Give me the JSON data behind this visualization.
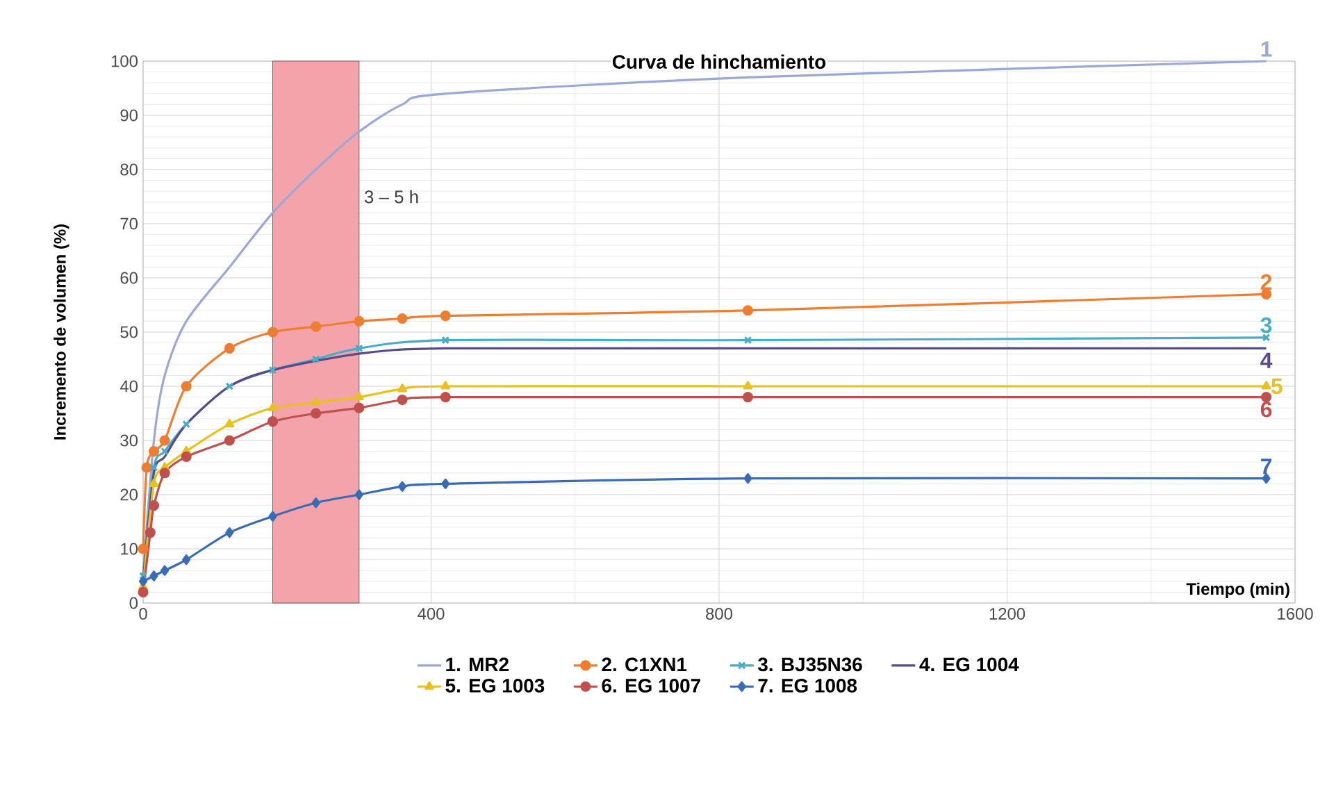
{
  "chart_data": {
    "type": "line",
    "title": "Curva de hinchamiento",
    "xlabel": "Tiempo (min)",
    "ylabel": "Incremento de volumen (%)",
    "xlim": [
      0,
      1600
    ],
    "xticks": [
      0,
      400,
      800,
      1200,
      1600
    ],
    "ylim": [
      0,
      100
    ],
    "yticks": [
      0,
      10,
      20,
      30,
      40,
      50,
      60,
      70,
      80,
      90,
      100
    ],
    "grid": true,
    "legend": "bottom",
    "marker": "circle",
    "bands": [
      {
        "axis": "x",
        "from": 180,
        "to": 300,
        "label": "3 – 5 h",
        "color": "#f4a3aa"
      }
    ],
    "annotations": [
      "1",
      "2",
      "3",
      "4",
      "5",
      "6",
      "7"
    ],
    "series": [
      {
        "name": "1. MR2",
        "color": "#9aa8d8",
        "marker": "none",
        "x": [
          0,
          15,
          30,
          60,
          120,
          180,
          240,
          300,
          360,
          420,
          840,
          1560
        ],
        "values": [
          5,
          30,
          42,
          52,
          62,
          72,
          80,
          87,
          92,
          94,
          97,
          100
        ]
      },
      {
        "name": "2. C1XN1",
        "color": "#ed7d31",
        "x": [
          0,
          5,
          15,
          30,
          60,
          120,
          180,
          240,
          300,
          360,
          420,
          840,
          1560
        ],
        "values": [
          10,
          25,
          28,
          30,
          40,
          47,
          50,
          51,
          52,
          52.5,
          53,
          54,
          57
        ]
      },
      {
        "name": "3. BJ35N36",
        "color": "#4bacc6",
        "marker": "cross",
        "x": [
          0,
          15,
          30,
          60,
          120,
          180,
          240,
          300,
          420,
          840,
          1560
        ],
        "values": [
          5,
          25,
          28,
          33,
          40,
          43,
          45,
          47,
          48.5,
          48.5,
          49
        ]
      },
      {
        "name": "4. EG 1004",
        "color": "#5b4a8a",
        "marker": "none",
        "x": [
          0,
          15,
          30,
          60,
          120,
          180,
          300,
          420,
          840,
          1560
        ],
        "values": [
          4,
          24,
          27,
          33,
          40,
          43,
          46,
          47,
          47,
          47
        ]
      },
      {
        "name": "5. EG 1003",
        "color": "#e8c020",
        "marker": "triangle",
        "x": [
          0,
          15,
          30,
          60,
          120,
          180,
          240,
          300,
          360,
          420,
          840,
          1560
        ],
        "values": [
          3,
          22,
          25,
          28,
          33,
          36,
          37,
          38,
          39.5,
          40,
          40,
          40
        ]
      },
      {
        "name": "6. EG 1007",
        "color": "#c0504d",
        "x": [
          0,
          10,
          15,
          30,
          60,
          120,
          180,
          240,
          300,
          360,
          420,
          840,
          1560
        ],
        "values": [
          2,
          13,
          18,
          24,
          27,
          30,
          33.5,
          35,
          36,
          37.5,
          38,
          38,
          38
        ]
      },
      {
        "name": "7. EG 1008",
        "color": "#3a6bb5",
        "marker": "diamond",
        "x": [
          0,
          15,
          30,
          60,
          120,
          180,
          240,
          300,
          360,
          420,
          840,
          1560
        ],
        "values": [
          4,
          5,
          6,
          8,
          13,
          16,
          18.5,
          20,
          21.5,
          22,
          23,
          23
        ]
      }
    ]
  }
}
